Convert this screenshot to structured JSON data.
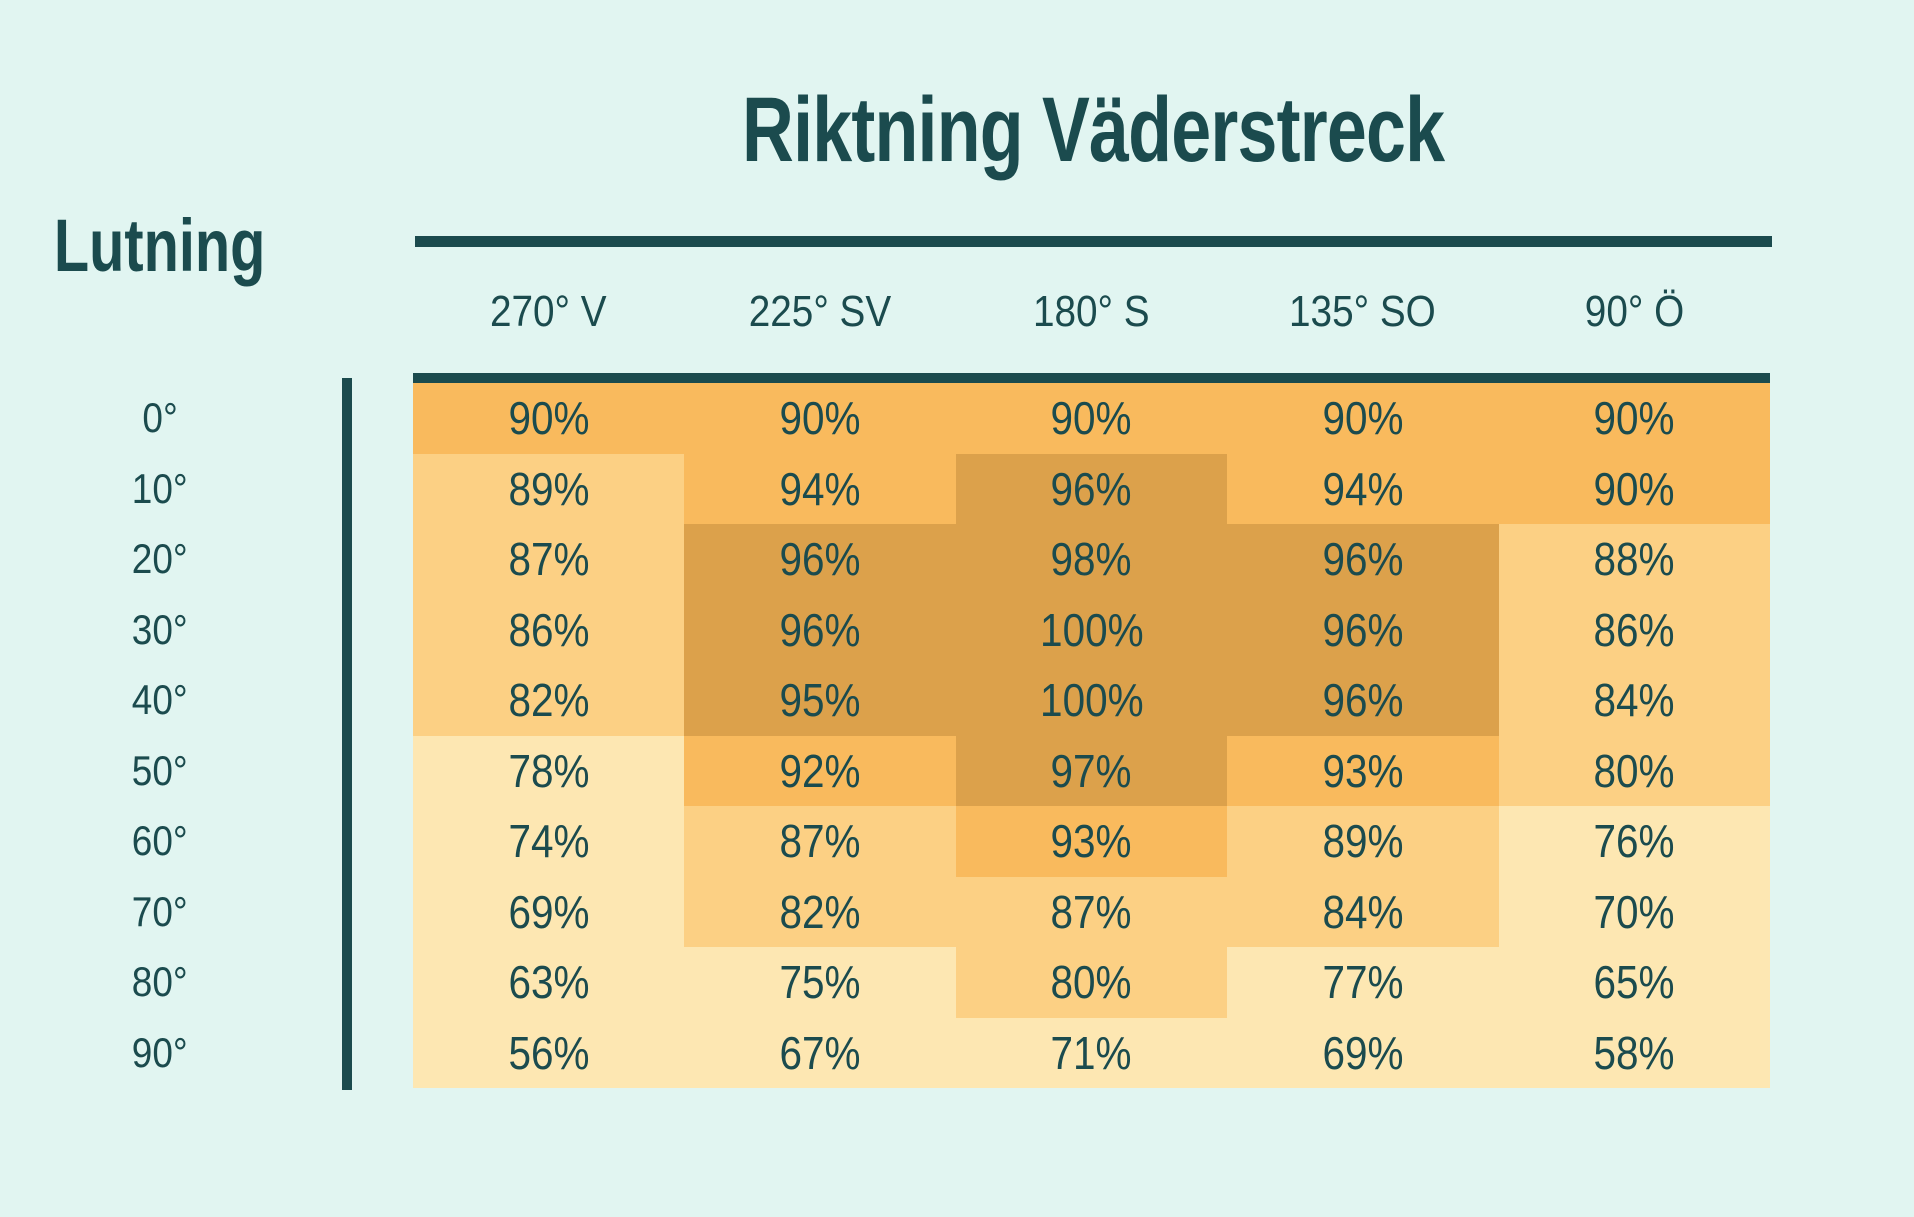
{
  "title": "Riktning Väderstreck",
  "row_axis_label": "Lutning",
  "value_suffix": "%",
  "colors": {
    "background": "#E1F5F1",
    "text_and_lines": "#1B4B4E",
    "bin_dark": "#DCA14B",
    "bin_medium": "#F9BA5D",
    "bin_light": "#FCD084",
    "bin_cream": "#FDE7B2"
  },
  "chart_data": {
    "type": "heatmap",
    "title": "Riktning Väderstreck",
    "ylabel": "Lutning",
    "x_categories": [
      "270° V",
      "225° SV",
      "180° S",
      "135° SO",
      "90° Ö"
    ],
    "y_categories": [
      "0°",
      "10°",
      "20°",
      "30°",
      "40°",
      "50°",
      "60°",
      "70°",
      "80°",
      "90°"
    ],
    "values": [
      [
        90,
        90,
        90,
        90,
        90
      ],
      [
        89,
        94,
        96,
        94,
        90
      ],
      [
        87,
        96,
        98,
        96,
        88
      ],
      [
        86,
        96,
        100,
        96,
        86
      ],
      [
        82,
        95,
        100,
        96,
        84
      ],
      [
        78,
        92,
        97,
        93,
        80
      ],
      [
        74,
        87,
        93,
        89,
        76
      ],
      [
        69,
        82,
        87,
        84,
        70
      ],
      [
        63,
        75,
        80,
        77,
        65
      ],
      [
        56,
        67,
        71,
        69,
        58
      ]
    ],
    "value_format": "percent",
    "color_scale": [
      {
        "min": 95,
        "color": "#DCA14B"
      },
      {
        "min": 90,
        "color": "#F9BA5D"
      },
      {
        "min": 80,
        "color": "#FCD084"
      },
      {
        "min": 0,
        "color": "#FDE7B2"
      }
    ],
    "legend": "none",
    "grid": false
  }
}
